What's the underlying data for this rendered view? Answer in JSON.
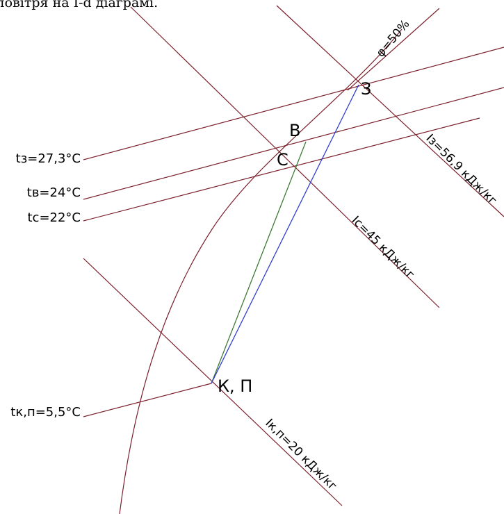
{
  "caption": "повітря на I-d діаграмі.",
  "colors": {
    "background": "#ffffff",
    "grid_line": "#7a1f2b",
    "process_SK": "#3f7a35",
    "process_ZK": "#2f3fd0",
    "text": "#000000"
  },
  "points": {
    "Z": "З",
    "B": "В",
    "C": "С",
    "KP": "К, П"
  },
  "temperature_labels": {
    "tz": "tз=27,3°С",
    "tv": "tв=24°С",
    "tc": "tс=22°С",
    "tkp": "tк,п=5,5°С"
  },
  "enthalpy_labels": {
    "iz": "Iз=56,9 кДж/кг",
    "ic": "Iс=45 кДж/кг",
    "ikp": "Iк,п=20 кДж/кг"
  },
  "humidity_label": "φ=50%"
}
